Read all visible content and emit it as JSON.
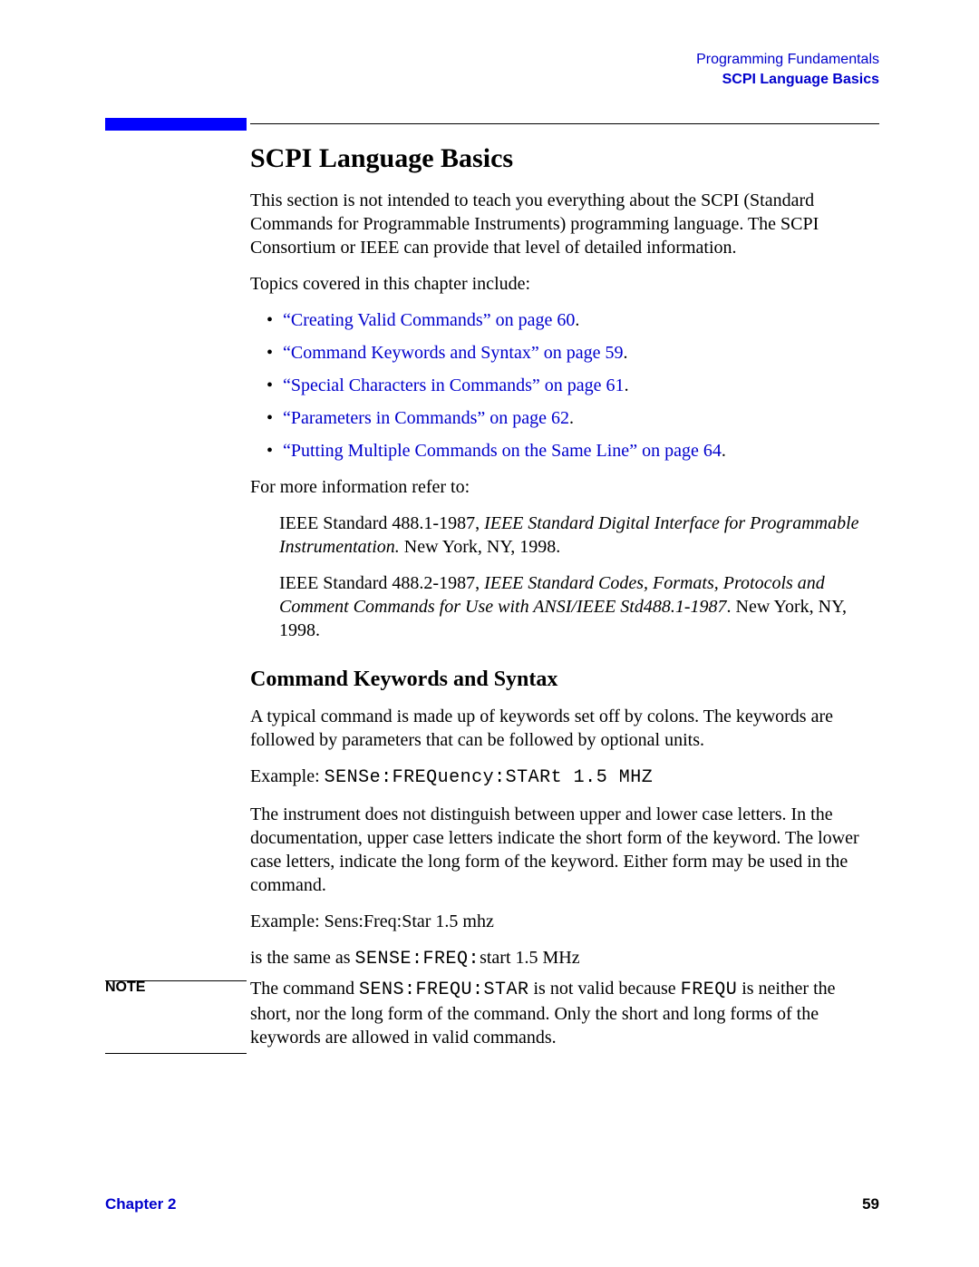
{
  "header": {
    "line1": "Programming Fundamentals",
    "line2": "SCPI Language Basics"
  },
  "title": "SCPI Language Basics",
  "intro": "This section is not intended to teach you everything about the SCPI (Standard Commands for Programmable Instruments) programming language. The SCPI Consortium or IEEE can provide that level of detailed information.",
  "topics_lead": "Topics covered in this chapter include:",
  "topics": [
    {
      "text": "“Creating Valid Commands” on page 60"
    },
    {
      "text": "“Command Keywords and Syntax” on page 59"
    },
    {
      "text": "“Special Characters in Commands” on page 61"
    },
    {
      "text": "“Parameters in Commands” on page 62"
    },
    {
      "text": "“Putting Multiple Commands on the Same Line” on page 64"
    }
  ],
  "more_info": "For more information refer to:",
  "refs": {
    "r1_pre": "IEEE Standard 488.1-1987, ",
    "r1_ital": "IEEE Standard Digital Interface for Programmable Instrumentation.",
    "r1_post": " New York, NY, 1998.",
    "r2_pre": "IEEE Standard 488.2-1987, ",
    "r2_ital": "IEEE Standard Codes, Formats, Protocols and Comment Commands for Use with ANSI/IEEE Std488.1-1987",
    "r2_post": ". New York, NY, 1998."
  },
  "section2": {
    "heading": "Command Keywords and Syntax",
    "p1": "A typical command is made up of keywords set off by colons. The keywords are followed by parameters that can be followed by optional units.",
    "ex1_label": "Example: ",
    "ex1_code": "SENSe:FREQuency:STARt 1.5 MHZ",
    "p2": "The instrument does not distinguish between upper and lower case letters. In the documentation, upper case letters indicate the short form of the keyword. The lower case letters, indicate the long form of the keyword. Either form may be used in the command.",
    "ex2": "Example: Sens:Freq:Star 1.5 mhz",
    "same_pre": "is the same as ",
    "same_code": "SENSE:FREQ:",
    "same_post": "start 1.5 MHz"
  },
  "note": {
    "label": "NOTE",
    "t1": "The command ",
    "c1": "SENS:FREQU:STAR",
    "t2": " is not valid because ",
    "c2": "FREQU",
    "t3": " is neither the short, nor the long form of the command. Only the short and long forms of the keywords are allowed in valid commands."
  },
  "footer": {
    "chapter": "Chapter 2",
    "page": "59"
  },
  "style": {
    "link_color": "#0000cc",
    "bar_color": "#0000ff"
  }
}
